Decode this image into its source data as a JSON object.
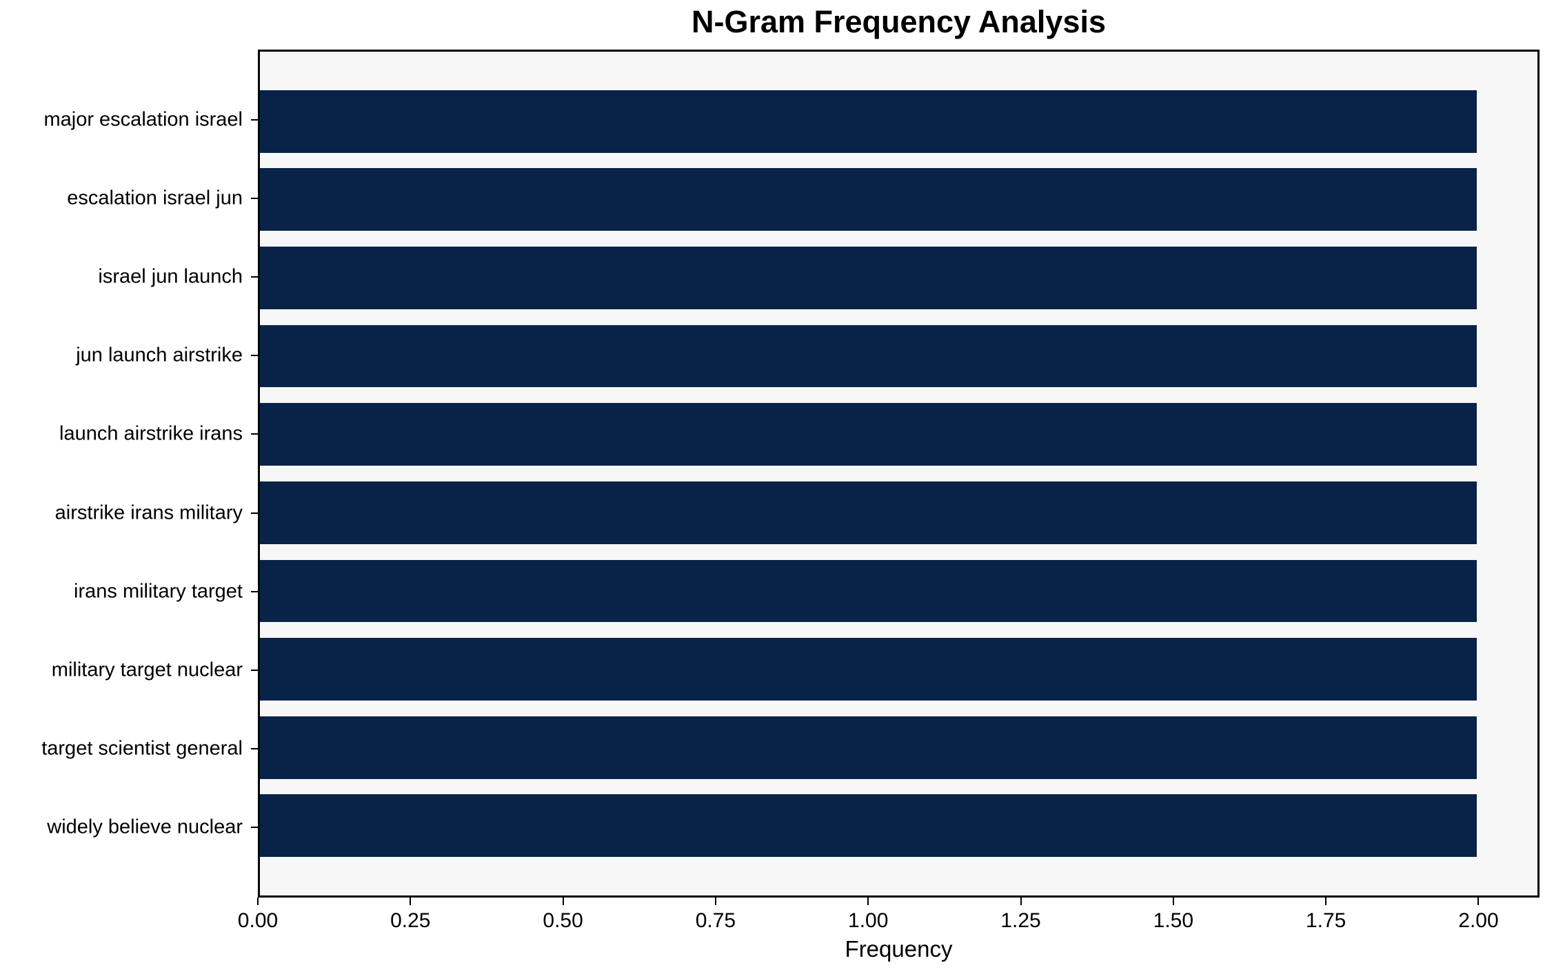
{
  "chart_data": {
    "type": "bar",
    "orientation": "horizontal",
    "title": "N-Gram Frequency Analysis",
    "xlabel": "Frequency",
    "ylabel": "",
    "categories": [
      "major escalation israel",
      "escalation israel jun",
      "israel jun launch",
      "jun launch airstrike",
      "launch airstrike irans",
      "airstrike irans military",
      "irans military target",
      "military target nuclear",
      "target scientist general",
      "widely believe nuclear"
    ],
    "values": [
      2,
      2,
      2,
      2,
      2,
      2,
      2,
      2,
      2,
      2
    ],
    "xlim": [
      0,
      2.1
    ],
    "x_ticks": [
      0.0,
      0.25,
      0.5,
      0.75,
      1.0,
      1.25,
      1.5,
      1.75,
      2.0
    ],
    "x_tick_labels": [
      "0.00",
      "0.25",
      "0.50",
      "0.75",
      "1.00",
      "1.25",
      "1.50",
      "1.75",
      "2.00"
    ],
    "grid": false,
    "legend": null,
    "bar_color": "#082347",
    "plot_background": "#f7f7f7",
    "figure_background": "#ffffff",
    "spine_color": "#000000",
    "bar_height_fraction": 0.8
  }
}
